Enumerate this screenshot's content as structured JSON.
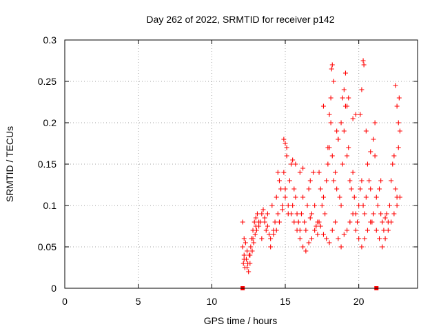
{
  "chart_data": {
    "type": "scatter",
    "title": "Day 262 of 2022, SRMTID for receiver p142",
    "xlabel": "GPS time / hours",
    "ylabel": "SRMTID / TECUs",
    "xlim": [
      0,
      24
    ],
    "ylim": [
      0,
      0.3
    ],
    "xticks": [
      "0",
      "5",
      "10",
      "15",
      "20"
    ],
    "yticks": [
      "0",
      "0.05",
      "0.1",
      "0.15",
      "0.2",
      "0.25",
      "0.3"
    ],
    "grid": true,
    "marker": "plus",
    "color": "#ff0000",
    "series": [
      {
        "name": "SRMTID",
        "x": [
          12.1,
          12.1,
          12.15,
          12.2,
          12.2,
          12.25,
          12.3,
          12.35,
          12.4,
          12.45,
          12.5,
          12.55,
          12.6,
          12.65,
          12.7,
          12.75,
          12.8,
          12.85,
          12.9,
          12.95,
          13.0,
          13.05,
          13.1,
          13.2,
          13.3,
          13.4,
          13.5,
          13.6,
          13.7,
          13.8,
          13.9,
          14.0,
          14.1,
          14.2,
          14.3,
          14.4,
          14.5,
          14.6,
          14.7,
          14.8,
          14.9,
          15.0,
          15.1,
          15.2,
          15.3,
          15.4,
          15.5,
          15.6,
          15.7,
          15.8,
          15.9,
          16.0,
          16.1,
          16.2,
          16.3,
          16.4,
          16.5,
          16.6,
          16.7,
          16.8,
          16.9,
          17.0,
          17.1,
          17.2,
          17.3,
          17.4,
          17.5,
          17.6,
          17.7,
          17.8,
          17.9,
          18.0,
          18.1,
          18.2,
          18.3,
          18.4,
          18.5,
          18.6,
          18.7,
          18.8,
          18.9,
          19.0,
          19.1,
          19.2,
          19.3,
          19.4,
          19.5,
          19.6,
          19.7,
          19.8,
          19.9,
          20.0,
          20.1,
          20.2,
          20.3,
          20.4,
          20.5,
          20.6,
          20.7,
          20.8,
          20.9,
          21.0,
          21.1,
          21.2,
          21.3,
          21.4,
          21.5,
          21.6,
          21.7,
          21.8,
          21.9,
          22.0,
          22.1,
          22.2,
          22.3,
          22.4,
          22.5,
          22.6,
          22.7,
          22.8,
          12.2,
          12.4,
          12.6,
          12.8,
          13.0,
          13.2,
          13.4,
          13.6,
          13.8,
          14.0,
          14.2,
          14.4,
          14.6,
          14.8,
          15.0,
          15.2,
          15.4,
          15.6,
          15.8,
          16.0,
          16.2,
          16.4,
          16.6,
          16.8,
          17.0,
          17.2,
          17.4,
          17.6,
          17.8,
          18.0,
          18.2,
          18.4,
          18.6,
          18.8,
          19.0,
          19.2,
          19.4,
          19.6,
          19.8,
          20.0,
          20.2,
          20.4,
          20.6,
          20.8,
          21.0,
          21.2,
          21.4,
          21.6,
          21.8,
          22.0,
          22.2,
          22.4,
          22.6,
          22.8,
          14.5,
          14.9,
          15.0,
          15.1,
          15.5,
          15.7,
          16.0,
          16.2,
          16.7,
          17.3,
          17.6,
          17.9,
          18.0,
          18.1,
          18.15,
          18.2,
          18.3,
          18.5,
          18.6,
          18.8,
          18.9,
          19.0,
          19.1,
          19.2,
          19.3,
          19.6,
          19.8,
          20.1,
          20.2,
          20.3,
          20.35,
          20.5,
          20.8,
          21.0,
          21.1,
          21.5,
          22.5,
          22.6,
          22.7,
          22.75
        ],
        "y": [
          0.05,
          0.08,
          0.03,
          0.06,
          0.04,
          0.025,
          0.055,
          0.035,
          0.045,
          0.03,
          0.02,
          0.04,
          0.03,
          0.05,
          0.06,
          0.045,
          0.07,
          0.055,
          0.08,
          0.065,
          0.085,
          0.07,
          0.09,
          0.075,
          0.08,
          0.06,
          0.095,
          0.08,
          0.07,
          0.09,
          0.065,
          0.06,
          0.1,
          0.07,
          0.08,
          0.11,
          0.09,
          0.13,
          0.12,
          0.1,
          0.14,
          0.12,
          0.16,
          0.09,
          0.13,
          0.15,
          0.1,
          0.12,
          0.11,
          0.09,
          0.08,
          0.07,
          0.09,
          0.11,
          0.08,
          0.07,
          0.1,
          0.12,
          0.085,
          0.09,
          0.14,
          0.1,
          0.075,
          0.065,
          0.08,
          0.12,
          0.1,
          0.11,
          0.09,
          0.13,
          0.15,
          0.17,
          0.2,
          0.16,
          0.13,
          0.14,
          0.12,
          0.18,
          0.11,
          0.1,
          0.15,
          0.19,
          0.22,
          0.16,
          0.17,
          0.13,
          0.12,
          0.14,
          0.11,
          0.09,
          0.08,
          0.1,
          0.12,
          0.13,
          0.1,
          0.09,
          0.11,
          0.15,
          0.13,
          0.12,
          0.08,
          0.09,
          0.16,
          0.11,
          0.1,
          0.12,
          0.09,
          0.08,
          0.07,
          0.085,
          0.09,
          0.08,
          0.1,
          0.13,
          0.15,
          0.16,
          0.12,
          0.11,
          0.17,
          0.19,
          0.035,
          0.025,
          0.04,
          0.06,
          0.075,
          0.08,
          0.09,
          0.085,
          0.075,
          0.05,
          0.065,
          0.07,
          0.08,
          0.095,
          0.11,
          0.1,
          0.09,
          0.08,
          0.07,
          0.06,
          0.05,
          0.045,
          0.055,
          0.06,
          0.07,
          0.08,
          0.075,
          0.065,
          0.06,
          0.055,
          0.07,
          0.08,
          0.06,
          0.05,
          0.065,
          0.07,
          0.08,
          0.09,
          0.07,
          0.06,
          0.05,
          0.06,
          0.07,
          0.08,
          0.09,
          0.07,
          0.06,
          0.05,
          0.06,
          0.07,
          0.08,
          0.09,
          0.1,
          0.11,
          0.14,
          0.18,
          0.175,
          0.17,
          0.155,
          0.15,
          0.14,
          0.145,
          0.13,
          0.14,
          0.22,
          0.17,
          0.21,
          0.23,
          0.265,
          0.27,
          0.25,
          0.19,
          0.18,
          0.2,
          0.23,
          0.24,
          0.26,
          0.22,
          0.23,
          0.205,
          0.21,
          0.21,
          0.24,
          0.275,
          0.27,
          0.19,
          0.165,
          0.18,
          0.2,
          0.13,
          0.245,
          0.22,
          0.2,
          0.23
        ]
      }
    ],
    "axis_markers_x": [
      12.1,
      21.2
    ]
  }
}
